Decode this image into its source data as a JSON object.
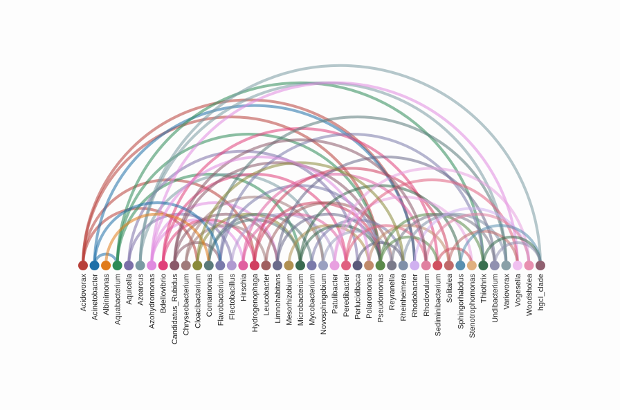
{
  "nodes": [
    {
      "label": "Acidovorax",
      "color": "#b8403a"
    },
    {
      "label": "Acinetobacter",
      "color": "#1f6fa8"
    },
    {
      "label": "Albinimonas",
      "color": "#e07b1a"
    },
    {
      "label": "Aquabacterium",
      "color": "#2e8b57"
    },
    {
      "label": "Aquicella",
      "color": "#7b6fa8"
    },
    {
      "label": "Azoarcus",
      "color": "#7a9aa3"
    },
    {
      "label": "Azohydromonas",
      "color": "#e08be0"
    },
    {
      "label": "Bdellovibrio",
      "color": "#e0407a"
    },
    {
      "label": "Candidatus_Rubidus",
      "color": "#8a5a6a"
    },
    {
      "label": "Chryseobacterium",
      "color": "#a07a7a"
    },
    {
      "label": "Cloacibacterium",
      "color": "#8a8a3a"
    },
    {
      "label": "Comamonas",
      "color": "#5a7a7a"
    },
    {
      "label": "Flavobacterium",
      "color": "#7a7aaa"
    },
    {
      "label": "Flectobacillus",
      "color": "#b09ad0"
    },
    {
      "label": "Hirschia",
      "color": "#e060a0"
    },
    {
      "label": "Hydrogenophaga",
      "color": "#d04060"
    },
    {
      "label": "Leucobacter",
      "color": "#a06060"
    },
    {
      "label": "Limnohabitans",
      "color": "#6a6a8a"
    },
    {
      "label": "Mesorhizobium",
      "color": "#b09050"
    },
    {
      "label": "Microbacterium",
      "color": "#3a6a50"
    },
    {
      "label": "Mycobacterium",
      "color": "#7a7aaa"
    },
    {
      "label": "Novosphingobium",
      "color": "#9aa0c0"
    },
    {
      "label": "Patulibacter",
      "color": "#e8a0e0"
    },
    {
      "label": "Peredibacter",
      "color": "#e06080"
    },
    {
      "label": "Perlucidibaca",
      "color": "#5a5a7a"
    },
    {
      "label": "Polaromonas",
      "color": "#c08a6a"
    },
    {
      "label": "Pseudomonas",
      "color": "#5a8a4a"
    },
    {
      "label": "Reyranella",
      "color": "#7a7a8a"
    },
    {
      "label": "Rheinheimera",
      "color": "#8090a8"
    },
    {
      "label": "Rhodobacter",
      "color": "#d0b0f0"
    },
    {
      "label": "Rhodovulum",
      "color": "#e080a0"
    },
    {
      "label": "Sediminibacterium",
      "color": "#d05060"
    },
    {
      "label": "Solitalea",
      "color": "#c06a6a"
    },
    {
      "label": "Sphingorhabdus",
      "color": "#5a90b0"
    },
    {
      "label": "Stenotrophomonas",
      "color": "#e0b080"
    },
    {
      "label": "Thiothrix",
      "color": "#3a7050"
    },
    {
      "label": "Undibacterium",
      "color": "#9090b0"
    },
    {
      "label": "Variovorax",
      "color": "#8aa0a8"
    },
    {
      "label": "Vogesella",
      "color": "#f0c0f0"
    },
    {
      "label": "Woodsholea",
      "color": "#e890b0"
    },
    {
      "label": "hgcI_clade",
      "color": "#906070"
    }
  ],
  "links": [
    [
      0,
      26
    ],
    [
      0,
      15
    ],
    [
      0,
      10
    ],
    [
      0,
      29
    ],
    [
      1,
      29
    ],
    [
      1,
      3
    ],
    [
      3,
      26
    ],
    [
      3,
      35
    ],
    [
      3,
      19
    ],
    [
      4,
      13
    ],
    [
      4,
      24
    ],
    [
      5,
      40
    ],
    [
      5,
      37
    ],
    [
      5,
      21
    ],
    [
      6,
      17
    ],
    [
      6,
      38
    ],
    [
      6,
      14
    ],
    [
      7,
      23
    ],
    [
      7,
      31
    ],
    [
      7,
      15
    ],
    [
      8,
      26
    ],
    [
      8,
      17
    ],
    [
      8,
      12
    ],
    [
      9,
      16
    ],
    [
      9,
      21
    ],
    [
      10,
      19
    ],
    [
      11,
      19
    ],
    [
      11,
      37
    ],
    [
      11,
      20
    ],
    [
      12,
      35
    ],
    [
      12,
      26
    ],
    [
      13,
      22
    ],
    [
      14,
      23
    ],
    [
      14,
      30
    ],
    [
      15,
      26
    ],
    [
      15,
      32
    ],
    [
      16,
      27
    ],
    [
      17,
      26
    ],
    [
      17,
      36
    ],
    [
      18,
      25
    ],
    [
      19,
      26
    ],
    [
      19,
      33
    ],
    [
      20,
      28
    ],
    [
      21,
      27
    ],
    [
      22,
      34
    ],
    [
      22,
      39
    ],
    [
      23,
      30
    ],
    [
      23,
      38
    ],
    [
      24,
      28
    ],
    [
      25,
      32
    ],
    [
      26,
      31
    ],
    [
      26,
      35
    ],
    [
      27,
      36
    ],
    [
      28,
      37
    ],
    [
      29,
      39
    ],
    [
      30,
      39
    ],
    [
      31,
      34
    ],
    [
      32,
      38
    ],
    [
      33,
      40
    ],
    [
      35,
      40
    ],
    [
      36,
      40
    ],
    [
      2,
      11
    ],
    [
      1,
      12
    ],
    [
      8,
      30
    ],
    [
      10,
      28
    ],
    [
      6,
      25
    ]
  ]
}
